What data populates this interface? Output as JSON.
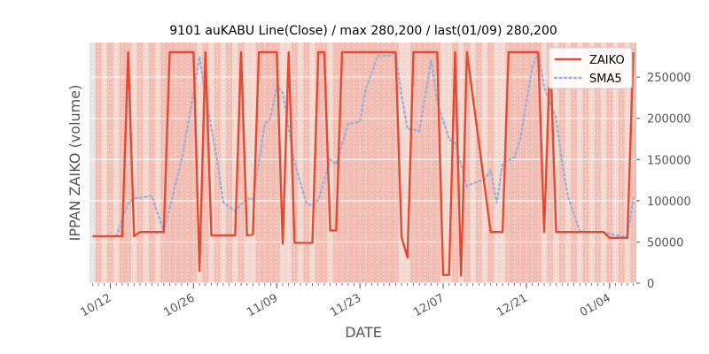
{
  "chart_data": {
    "type": "line",
    "title": "9101 auKABU Line(Close) / max 280,200 / last(01/09) 280,200",
    "xlabel": "DATE",
    "ylabel": "IPPAN ZAIKO (volume)",
    "ylim": [
      0,
      292000
    ],
    "yticks": [
      0,
      50000,
      100000,
      150000,
      200000,
      250000
    ],
    "ytick_labels": [
      "0",
      "50000",
      "100000",
      "150000",
      "200000",
      "250000"
    ],
    "x_range": [
      -0.5,
      91.5
    ],
    "xticks": [
      {
        "x": 3,
        "label": "10/12"
      },
      {
        "x": 17,
        "label": "10/26"
      },
      {
        "x": 31,
        "label": "11/09"
      },
      {
        "x": 45,
        "label": "11/23"
      },
      {
        "x": 59,
        "label": "12/07"
      },
      {
        "x": 73,
        "label": "12/21"
      },
      {
        "x": 87,
        "label": "01/04"
      }
    ],
    "legend_position": "top-right",
    "series": [
      {
        "name": "ZAIKO",
        "color": "#E24A33",
        "style": "solid",
        "points": [
          [
            0,
            57000
          ],
          [
            5,
            57000
          ],
          [
            6,
            280200
          ],
          [
            7,
            57000
          ],
          [
            8,
            62000
          ],
          [
            12,
            62000
          ],
          [
            13,
            280200
          ],
          [
            17,
            280200
          ],
          [
            18,
            15000
          ],
          [
            19,
            280200
          ],
          [
            20,
            58000
          ],
          [
            24,
            58000
          ],
          [
            25,
            280200
          ],
          [
            26,
            58000
          ],
          [
            27,
            59000
          ],
          [
            28,
            280200
          ],
          [
            31,
            280200
          ],
          [
            32,
            48000
          ],
          [
            33,
            280200
          ],
          [
            34,
            49000
          ],
          [
            37,
            49000
          ],
          [
            38,
            280200
          ],
          [
            39,
            280200
          ],
          [
            40,
            64000
          ],
          [
            41,
            64000
          ],
          [
            42,
            280200
          ],
          [
            51,
            280200
          ],
          [
            52,
            56000
          ],
          [
            53,
            31000
          ],
          [
            54,
            280200
          ],
          [
            58,
            280200
          ],
          [
            59,
            10000
          ],
          [
            60,
            10000
          ],
          [
            61,
            280200
          ],
          [
            62,
            9000
          ],
          [
            63,
            280200
          ],
          [
            67,
            62000
          ],
          [
            69,
            62000
          ],
          [
            70,
            280200
          ],
          [
            75,
            280200
          ],
          [
            76,
            62000
          ],
          [
            77,
            280200
          ],
          [
            78,
            62000
          ],
          [
            86,
            62000
          ],
          [
            87,
            55000
          ],
          [
            90,
            55000
          ],
          [
            91,
            280200
          ]
        ]
      },
      {
        "name": "SMA5",
        "color": "#8EBA42",
        "style": "dotted",
        "points": [
          [
            4,
            57000
          ],
          [
            6,
            97000
          ],
          [
            7,
            103000
          ],
          [
            10,
            106000
          ],
          [
            12,
            63000
          ],
          [
            15,
            150000
          ],
          [
            17,
            231000
          ],
          [
            18,
            275000
          ],
          [
            19,
            228000
          ],
          [
            21,
            148000
          ],
          [
            22,
            98000
          ],
          [
            24,
            88000
          ],
          [
            26,
            103000
          ],
          [
            27,
            101000
          ],
          [
            29,
            193000
          ],
          [
            30,
            201000
          ],
          [
            31,
            240000
          ],
          [
            32,
            231000
          ],
          [
            34,
            146000
          ],
          [
            36,
            97000
          ],
          [
            37,
            94000
          ],
          [
            38,
            101000
          ],
          [
            40,
            150000
          ],
          [
            41,
            144000
          ],
          [
            43,
            193000
          ],
          [
            45,
            196000
          ],
          [
            46,
            236000
          ],
          [
            48,
            276000
          ],
          [
            50,
            276000
          ],
          [
            51,
            280000
          ],
          [
            52,
            228000
          ],
          [
            53,
            187000
          ],
          [
            54,
            186000
          ],
          [
            55,
            185000
          ],
          [
            57,
            271000
          ],
          [
            58,
            220000
          ],
          [
            60,
            175000
          ],
          [
            61,
            170000
          ],
          [
            63,
            118000
          ],
          [
            64,
            121000
          ],
          [
            66,
            126000
          ],
          [
            67,
            137000
          ],
          [
            68,
            97000
          ],
          [
            69,
            145000
          ],
          [
            71,
            153000
          ],
          [
            72,
            176000
          ],
          [
            74,
            262000
          ],
          [
            75,
            280000
          ],
          [
            76,
            238000
          ],
          [
            78,
            200000
          ],
          [
            79,
            146000
          ],
          [
            80,
            105000
          ],
          [
            82,
            63000
          ],
          [
            84,
            62000
          ],
          [
            86,
            62000
          ],
          [
            87,
            60000
          ],
          [
            89,
            57000
          ],
          [
            90,
            57000
          ],
          [
            91,
            103000
          ]
        ]
      }
    ],
    "bands": [
      [
        0.5,
        1.5
      ],
      [
        2.5,
        3.5
      ],
      [
        4.5,
        5.5
      ],
      [
        5.5,
        6.5
      ],
      [
        7.5,
        8.5
      ],
      [
        9.5,
        10.5
      ],
      [
        11.5,
        12.5
      ],
      [
        12.5,
        17.5
      ],
      [
        18.5,
        19.5
      ],
      [
        20.5,
        21.5
      ],
      [
        22.5,
        23.5
      ],
      [
        24.5,
        25.5
      ],
      [
        27.5,
        31.5
      ],
      [
        33.5,
        34.5
      ],
      [
        35.5,
        36.5
      ],
      [
        37.5,
        39.5
      ],
      [
        40.5,
        41.5
      ],
      [
        41.5,
        51.5
      ],
      [
        53.5,
        58.5
      ],
      [
        60.5,
        61.5
      ],
      [
        62.5,
        63.5
      ],
      [
        64.5,
        65.5
      ],
      [
        66.5,
        67.5
      ],
      [
        69.5,
        75.5
      ],
      [
        76.5,
        77.5
      ],
      [
        78.5,
        79.5
      ],
      [
        80.5,
        81.5
      ],
      [
        82.5,
        83.5
      ],
      [
        84.5,
        85.5
      ],
      [
        86.5,
        87.5
      ],
      [
        88.5,
        89.5
      ],
      [
        90.5,
        91.5
      ]
    ]
  },
  "colors": {
    "axes_bg": "#E5E5E5",
    "band_light": "#F3D8D0",
    "band_strong": "#F2B6AA",
    "grid": "#FFFFFF",
    "zaiko": "#E24A33",
    "sma": "#9AAFD6"
  }
}
